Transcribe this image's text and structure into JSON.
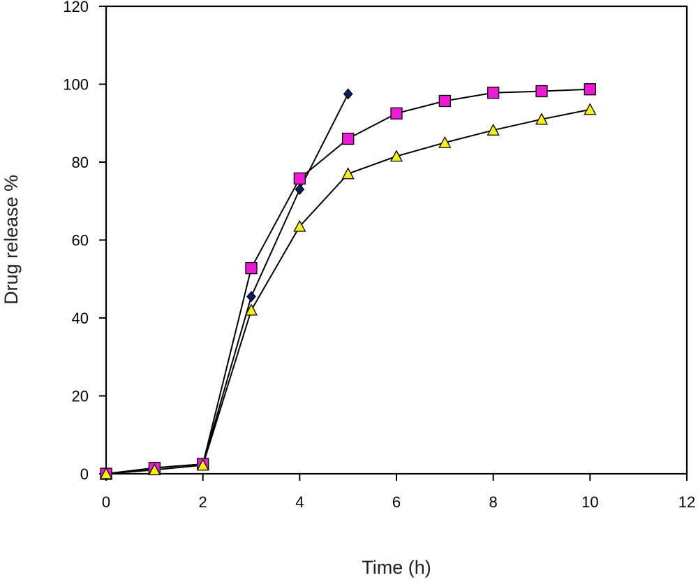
{
  "chart_data": {
    "type": "line",
    "title": "",
    "xlabel": "Time (h)",
    "ylabel": "Drug release %",
    "xlim": [
      0,
      12
    ],
    "ylim": [
      0,
      120
    ],
    "xticks": [
      0,
      2,
      4,
      6,
      8,
      10,
      12
    ],
    "yticks": [
      0,
      20,
      40,
      60,
      80,
      100,
      120
    ],
    "grid": false,
    "legend": "none",
    "series": [
      {
        "marker": "diamond",
        "color": "#0b1a6e",
        "x": [
          0,
          1,
          2,
          3,
          4,
          5
        ],
        "y": [
          0,
          1.5,
          2.5,
          45.5,
          73,
          97.5
        ]
      },
      {
        "marker": "square",
        "color": "#ee1bd6",
        "x": [
          0,
          1,
          2,
          3,
          4,
          5,
          6,
          7,
          8,
          9,
          10
        ],
        "y": [
          0,
          1.5,
          2.5,
          52.8,
          75.8,
          86,
          92.5,
          95.7,
          97.8,
          98.2,
          98.7
        ]
      },
      {
        "marker": "triangle",
        "color": "#f5ef14",
        "x": [
          0,
          1,
          2,
          3,
          4,
          5,
          6,
          7,
          8,
          9,
          10
        ],
        "y": [
          0,
          1,
          2.2,
          42,
          63.5,
          77,
          81.5,
          85,
          88.2,
          91,
          93.5
        ]
      }
    ]
  }
}
